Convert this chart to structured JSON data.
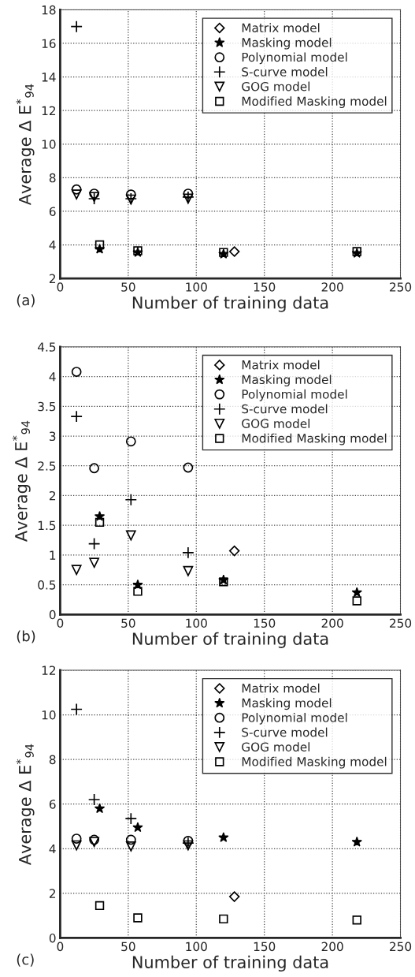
{
  "chart_data": [
    {
      "type": "scatter",
      "xlabel": "Number of training data",
      "ylabel": "Average Δ E$^{*}$$_{94}$",
      "annotations": [
        "(a)"
      ],
      "xlim": [
        0,
        250
      ],
      "xticks": [
        0,
        50,
        100,
        150,
        200,
        250
      ],
      "ylim": [
        2,
        18
      ],
      "yticks": [
        2,
        4,
        6,
        8,
        10,
        12,
        14,
        16,
        18
      ],
      "grid": true,
      "legend": "top right",
      "series": [
        {
          "name": "Matrix model",
          "color": "#000000",
          "marker": "diamond",
          "x": [
            128
          ],
          "values": [
            3.6
          ]
        },
        {
          "name": "Masking model",
          "color": "#000000",
          "marker": "star",
          "x": [
            29,
            57,
            120,
            218
          ],
          "values": [
            3.75,
            3.55,
            3.45,
            3.5
          ]
        },
        {
          "name": "Polynomial model",
          "color": "#000000",
          "marker": "circle",
          "x": [
            12,
            25,
            52,
            94
          ],
          "values": [
            7.3,
            7.05,
            7.0,
            7.05
          ]
        },
        {
          "name": "S-curve model",
          "color": "#000000",
          "marker": "cross",
          "x": [
            12,
            25,
            52,
            94
          ],
          "values": [
            17.0,
            6.75,
            6.75,
            6.85
          ]
        },
        {
          "name": "GOG model",
          "color": "#000000",
          "marker": "triangle",
          "x": [
            12,
            25,
            52,
            94
          ],
          "values": [
            7.0,
            6.85,
            6.7,
            6.75
          ]
        },
        {
          "name": "Modified Masking model",
          "color": "#000000",
          "marker": "square",
          "x": [
            29,
            57,
            120,
            218
          ],
          "values": [
            4.0,
            3.65,
            3.55,
            3.6
          ]
        }
      ]
    },
    {
      "type": "scatter",
      "xlabel": "Number of training data",
      "ylabel": "Average Δ E$^{*}$$_{94}$",
      "annotations": [
        "(b)"
      ],
      "xlim": [
        0,
        250
      ],
      "xticks": [
        0,
        50,
        100,
        150,
        200,
        250
      ],
      "ylim": [
        0,
        4.5
      ],
      "yticks": [
        0,
        0.5,
        1,
        1.5,
        2,
        2.5,
        3,
        3.5,
        4,
        4.5
      ],
      "grid": true,
      "legend": "top right",
      "series": [
        {
          "name": "Matrix model",
          "color": "#000000",
          "marker": "diamond",
          "x": [
            128
          ],
          "values": [
            1.07
          ]
        },
        {
          "name": "Masking model",
          "color": "#000000",
          "marker": "star",
          "x": [
            29,
            57,
            120,
            218
          ],
          "values": [
            1.65,
            0.5,
            0.58,
            0.37
          ]
        },
        {
          "name": "Polynomial model",
          "color": "#000000",
          "marker": "circle",
          "x": [
            12,
            25,
            52,
            94
          ],
          "values": [
            4.08,
            2.46,
            2.91,
            2.47
          ]
        },
        {
          "name": "S-curve model",
          "color": "#000000",
          "marker": "cross",
          "x": [
            12,
            25,
            52,
            94
          ],
          "values": [
            3.33,
            1.19,
            1.93,
            1.04
          ]
        },
        {
          "name": "GOG model",
          "color": "#000000",
          "marker": "triangle",
          "x": [
            12,
            25,
            52,
            94
          ],
          "values": [
            0.75,
            0.87,
            1.33,
            0.73
          ]
        },
        {
          "name": "Modified Masking model",
          "color": "#000000",
          "marker": "square",
          "x": [
            29,
            57,
            120,
            218
          ],
          "values": [
            1.55,
            0.39,
            0.55,
            0.23
          ]
        }
      ]
    },
    {
      "type": "scatter",
      "xlabel": "Number of training data",
      "ylabel": "Average Δ E$^{*}$$_{94}$",
      "annotations": [
        "(c)"
      ],
      "xlim": [
        0,
        250
      ],
      "xticks": [
        0,
        50,
        100,
        150,
        200,
        250
      ],
      "ylim": [
        0,
        12
      ],
      "yticks": [
        0,
        2,
        4,
        6,
        8,
        10,
        12
      ],
      "grid": true,
      "legend": "top right",
      "series": [
        {
          "name": "Matrix model",
          "color": "#000000",
          "marker": "diamond",
          "x": [
            128
          ],
          "values": [
            1.85
          ]
        },
        {
          "name": "Masking model",
          "color": "#000000",
          "marker": "star",
          "x": [
            29,
            57,
            120,
            218
          ],
          "values": [
            5.8,
            4.95,
            4.5,
            4.3
          ]
        },
        {
          "name": "Polynomial model",
          "color": "#000000",
          "marker": "circle",
          "x": [
            12,
            25,
            52,
            94
          ],
          "values": [
            4.45,
            4.4,
            4.4,
            4.35
          ]
        },
        {
          "name": "S-curve model",
          "color": "#000000",
          "marker": "cross",
          "x": [
            12,
            25,
            52,
            94
          ],
          "values": [
            10.25,
            6.2,
            5.35,
            4.25
          ]
        },
        {
          "name": "GOG model",
          "color": "#000000",
          "marker": "triangle",
          "x": [
            12,
            25,
            52,
            94
          ],
          "values": [
            4.15,
            4.3,
            4.1,
            4.15
          ]
        },
        {
          "name": "Modified Masking model",
          "color": "#000000",
          "marker": "square",
          "x": [
            29,
            57,
            120,
            218
          ],
          "values": [
            1.45,
            0.9,
            0.85,
            0.8
          ]
        }
      ]
    }
  ]
}
